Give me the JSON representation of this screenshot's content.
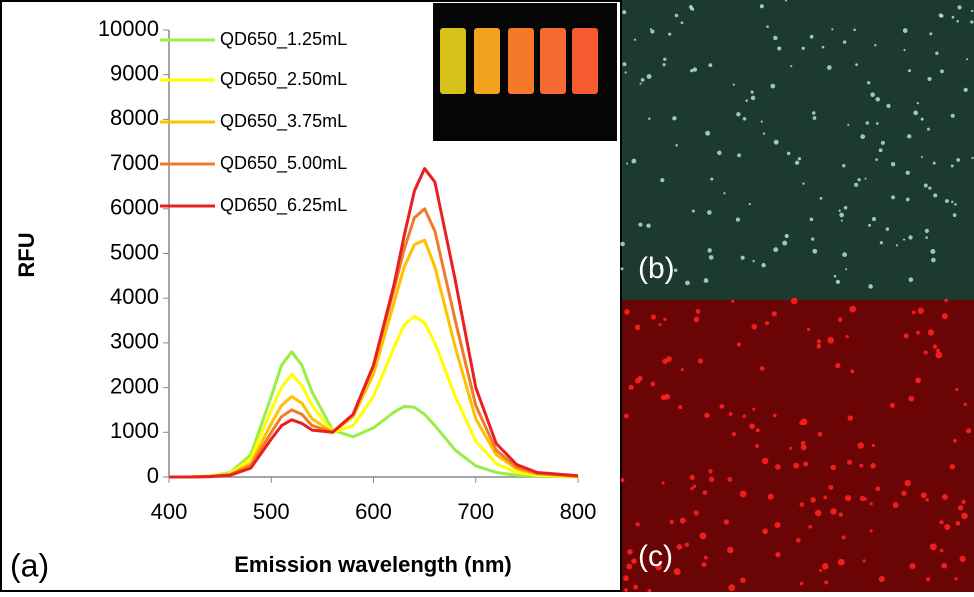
{
  "chart_data": {
    "type": "line",
    "panel_label": "(a)",
    "xlabel": "Emission wavelength (nm)",
    "ylabel": "RFU",
    "x": [
      400,
      420,
      440,
      460,
      480,
      500,
      510,
      520,
      530,
      540,
      560,
      580,
      600,
      620,
      630,
      640,
      650,
      660,
      680,
      700,
      720,
      740,
      760,
      800
    ],
    "series": [
      {
        "name": "QD650_1.25mL",
        "color": "#99ee44",
        "values": [
          0,
          0,
          20,
          100,
          500,
          1800,
          2500,
          2800,
          2500,
          1900,
          1050,
          900,
          1100,
          1450,
          1580,
          1560,
          1400,
          1150,
          600,
          250,
          100,
          40,
          20,
          0
        ]
      },
      {
        "name": "QD650_2.50mL",
        "color": "#ffff00",
        "values": [
          0,
          0,
          20,
          80,
          400,
          1500,
          2000,
          2300,
          2050,
          1600,
          1000,
          1150,
          1800,
          2900,
          3400,
          3600,
          3450,
          3000,
          1800,
          800,
          300,
          100,
          40,
          0
        ]
      },
      {
        "name": "QD650_3.75mL",
        "color": "#ffc000",
        "values": [
          0,
          0,
          15,
          60,
          300,
          1200,
          1600,
          1800,
          1650,
          1300,
          1000,
          1350,
          2300,
          3900,
          4700,
          5200,
          5300,
          4700,
          2900,
          1300,
          500,
          180,
          70,
          10
        ]
      },
      {
        "name": "QD650_5.00mL",
        "color": "#f07b2a",
        "values": [
          0,
          0,
          10,
          50,
          250,
          1000,
          1350,
          1500,
          1400,
          1150,
          1000,
          1400,
          2500,
          4200,
          5100,
          5800,
          6000,
          5500,
          3500,
          1600,
          600,
          220,
          80,
          20
        ]
      },
      {
        "name": "QD650_6.25mL",
        "color": "#e82020",
        "values": [
          0,
          0,
          10,
          40,
          200,
          850,
          1150,
          1280,
          1200,
          1050,
          1000,
          1400,
          2500,
          4300,
          5400,
          6400,
          6900,
          6600,
          4400,
          2000,
          750,
          280,
          100,
          30
        ]
      }
    ],
    "xlim": [
      400,
      800
    ],
    "xticks": [
      400,
      500,
      600,
      700,
      800
    ],
    "ylim": [
      0,
      10000
    ],
    "yticks": [
      0,
      1000,
      2000,
      3000,
      4000,
      5000,
      6000,
      7000,
      8000,
      9000,
      10000
    ],
    "grid": false
  },
  "images": [
    {
      "label": "(b)"
    },
    {
      "label": "(c)"
    }
  ]
}
